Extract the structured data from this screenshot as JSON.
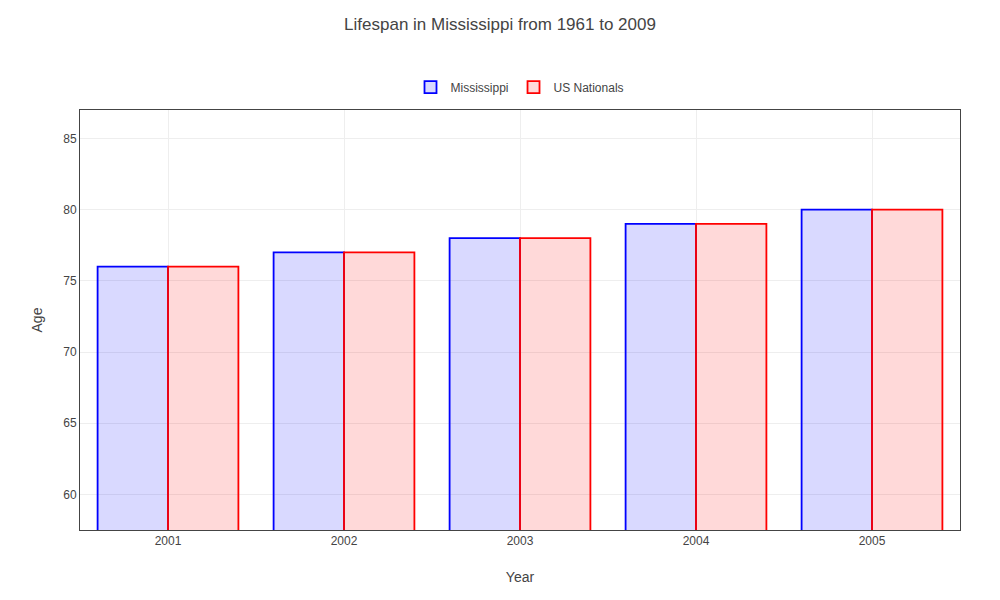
{
  "chart_data": {
    "type": "bar",
    "title": "Lifespan in Mississippi from 1961 to 2009",
    "categories": [
      "2001",
      "2002",
      "2003",
      "2004",
      "2005"
    ],
    "series": [
      {
        "name": "Mississippi",
        "color": "#0000ff",
        "values": [
          76,
          77,
          78,
          79,
          80
        ]
      },
      {
        "name": "US Nationals",
        "color": "#ff0000",
        "values": [
          76,
          77,
          78,
          79,
          80
        ]
      }
    ],
    "xlabel": "Year",
    "ylabel": "Age",
    "ylim": [
      57.5,
      87
    ],
    "yticks": [
      60,
      65,
      70,
      75,
      80,
      85
    ],
    "grid": true,
    "legend": "top"
  }
}
